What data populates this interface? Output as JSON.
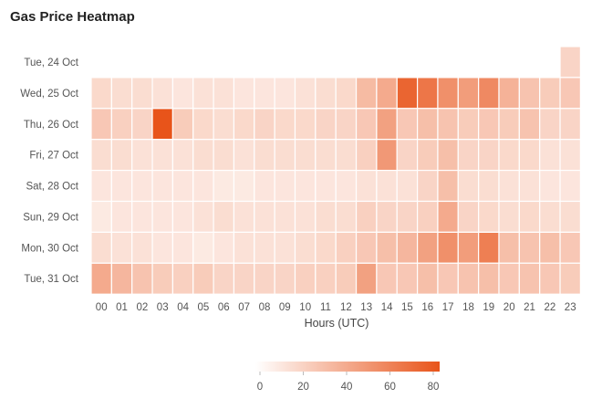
{
  "title": "Gas Price Heatmap",
  "chart_data": {
    "type": "heatmap",
    "title": "Gas Price Heatmap",
    "xlabel": "Hours (UTC)",
    "ylabel": "",
    "x": [
      "00",
      "01",
      "02",
      "03",
      "04",
      "05",
      "06",
      "07",
      "08",
      "09",
      "10",
      "11",
      "12",
      "13",
      "14",
      "15",
      "16",
      "17",
      "18",
      "19",
      "20",
      "21",
      "22",
      "23"
    ],
    "y": [
      "Tue, 24 Oct",
      "Wed, 25 Oct",
      "Thu, 26 Oct",
      "Fri, 27 Oct",
      "Sat, 28 Oct",
      "Sun, 29 Oct",
      "Mon, 30 Oct",
      "Tue, 31 Oct"
    ],
    "values": [
      [
        null,
        null,
        null,
        null,
        null,
        null,
        null,
        null,
        null,
        null,
        null,
        null,
        null,
        null,
        null,
        null,
        null,
        null,
        null,
        null,
        null,
        null,
        null,
        20
      ],
      [
        18,
        16,
        16,
        14,
        12,
        14,
        14,
        12,
        12,
        12,
        14,
        16,
        18,
        32,
        40,
        72,
        64,
        52,
        46,
        55,
        36,
        28,
        24,
        26
      ],
      [
        26,
        22,
        20,
        80,
        24,
        18,
        16,
        18,
        20,
        18,
        18,
        20,
        20,
        26,
        44,
        26,
        30,
        28,
        24,
        26,
        24,
        28,
        20,
        20
      ],
      [
        16,
        16,
        14,
        14,
        14,
        16,
        16,
        14,
        16,
        16,
        16,
        16,
        16,
        22,
        48,
        20,
        24,
        30,
        20,
        20,
        18,
        18,
        14,
        14
      ],
      [
        12,
        12,
        12,
        12,
        12,
        12,
        10,
        10,
        12,
        12,
        12,
        12,
        12,
        14,
        14,
        14,
        20,
        30,
        16,
        16,
        14,
        14,
        12,
        12
      ],
      [
        10,
        12,
        12,
        12,
        12,
        14,
        16,
        14,
        14,
        14,
        14,
        16,
        16,
        22,
        20,
        20,
        22,
        40,
        20,
        18,
        16,
        18,
        16,
        16
      ],
      [
        16,
        14,
        14,
        12,
        12,
        10,
        12,
        14,
        14,
        14,
        16,
        18,
        22,
        26,
        30,
        34,
        44,
        52,
        46,
        60,
        30,
        28,
        30,
        26
      ],
      [
        40,
        34,
        28,
        24,
        22,
        24,
        20,
        20,
        20,
        20,
        22,
        22,
        24,
        44,
        26,
        26,
        30,
        26,
        28,
        30,
        26,
        28,
        26,
        24
      ]
    ],
    "colorscale": {
      "min": 0,
      "max": 80,
      "low_color": "#ffffff",
      "high_color": "#e8541a",
      "ticks": [
        0,
        20,
        40,
        60,
        80
      ]
    },
    "legend_position": "bottom",
    "grid": false
  }
}
